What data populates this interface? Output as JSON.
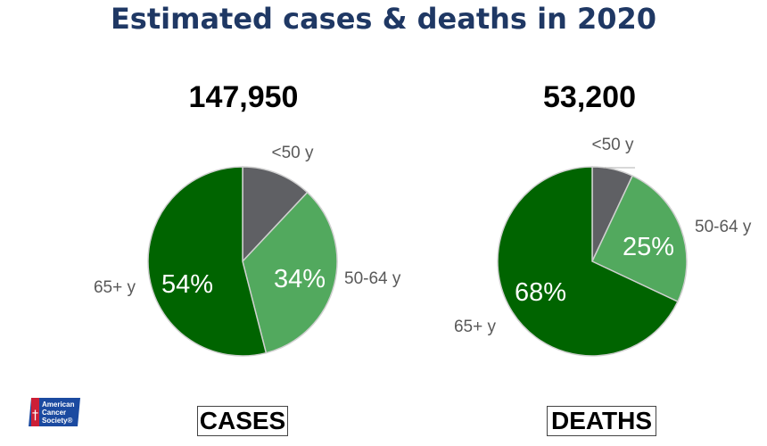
{
  "title": "Estimated cases & deaths in 2020",
  "logo": {
    "name": "American Cancer Society",
    "text_lines": [
      "American",
      "Cancer",
      "Society®"
    ],
    "colors": {
      "blue": "#1b4aa0",
      "red": "#cc1f36"
    }
  },
  "colors": {
    "under_50": "#5f6064",
    "age_50_64": "#52a95e",
    "age_65_plus": "#006400",
    "slice_border": "#d0d0d0",
    "title": "#1f3864"
  },
  "chart_data": [
    {
      "type": "pie",
      "total": "147,950",
      "label": "CASES",
      "categories": [
        "<50 y",
        "50-64 y",
        "65+ y"
      ],
      "values": [
        12,
        34,
        54
      ],
      "data_labels": [
        "",
        "34%",
        "54%"
      ]
    },
    {
      "type": "pie",
      "total": "53,200",
      "label": "DEATHS",
      "categories": [
        "<50 y",
        "50-64 y",
        "65+ y"
      ],
      "values": [
        7,
        25,
        68
      ],
      "data_labels": [
        "",
        "25%",
        "68%"
      ]
    }
  ]
}
